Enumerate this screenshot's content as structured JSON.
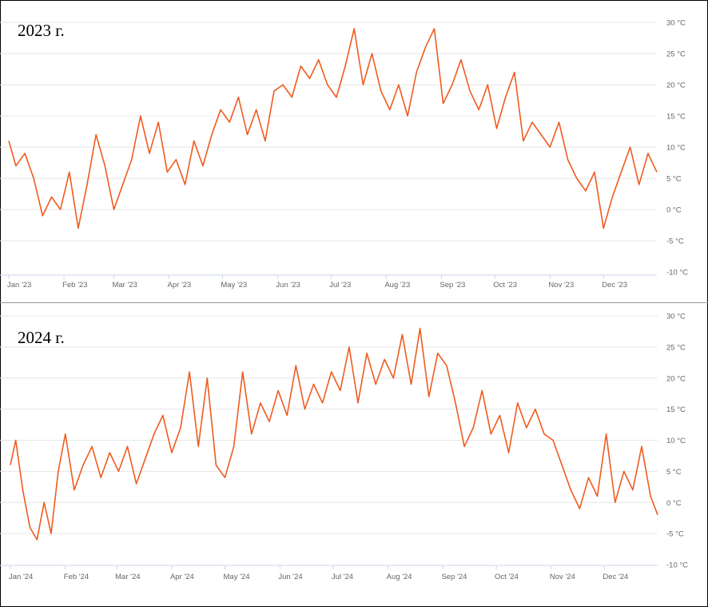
{
  "colors": {
    "series": "#ef5b1f",
    "grid": "#e6e6e6",
    "axis": "#ccd6eb",
    "label": "#666666"
  },
  "chart_data": [
    {
      "type": "line",
      "title": "2023 г.",
      "ylim": [
        -10,
        30
      ],
      "yticks": [
        30,
        25,
        20,
        15,
        10,
        5,
        0,
        -5,
        -10
      ],
      "ytick_labels": [
        "30 °C",
        "25 °C",
        "20 °C",
        "15 °C",
        "10 °C",
        "5 °C",
        "0 °C",
        "-5 °C",
        "-10 °C"
      ],
      "xtick_labels": [
        "Jan '23",
        "Feb '23",
        "Mar '23",
        "Apr '23",
        "May '23",
        "Jun '23",
        "Jul '23",
        "Aug '23",
        "Sep '23",
        "Oct '23",
        "Nov '23",
        "Dec '23"
      ],
      "xticks": [
        "2023-01-01",
        "2023-02-01",
        "2023-03-01",
        "2023-04-01",
        "2023-05-01",
        "2023-06-01",
        "2023-07-01",
        "2023-08-01",
        "2023-09-01",
        "2023-10-01",
        "2023-11-01",
        "2023-12-01"
      ],
      "grid": true,
      "legend": "none",
      "series": [
        {
          "points": [
            [
              "2023-01-01",
              11
            ],
            [
              "2023-01-05",
              7
            ],
            [
              "2023-01-10",
              9
            ],
            [
              "2023-01-15",
              5
            ],
            [
              "2023-01-20",
              -1
            ],
            [
              "2023-01-25",
              2
            ],
            [
              "2023-01-30",
              0
            ],
            [
              "2023-02-04",
              6
            ],
            [
              "2023-02-09",
              -3
            ],
            [
              "2023-02-14",
              4
            ],
            [
              "2023-02-19",
              12
            ],
            [
              "2023-02-24",
              7
            ],
            [
              "2023-03-01",
              0
            ],
            [
              "2023-03-06",
              4
            ],
            [
              "2023-03-11",
              8
            ],
            [
              "2023-03-16",
              15
            ],
            [
              "2023-03-21",
              9
            ],
            [
              "2023-03-26",
              14
            ],
            [
              "2023-03-31",
              6
            ],
            [
              "2023-04-05",
              8
            ],
            [
              "2023-04-10",
              4
            ],
            [
              "2023-04-15",
              11
            ],
            [
              "2023-04-20",
              7
            ],
            [
              "2023-04-25",
              12
            ],
            [
              "2023-04-30",
              16
            ],
            [
              "2023-05-05",
              14
            ],
            [
              "2023-05-10",
              18
            ],
            [
              "2023-05-15",
              12
            ],
            [
              "2023-05-20",
              16
            ],
            [
              "2023-05-25",
              11
            ],
            [
              "2023-05-30",
              19
            ],
            [
              "2023-06-04",
              20
            ],
            [
              "2023-06-09",
              18
            ],
            [
              "2023-06-14",
              23
            ],
            [
              "2023-06-19",
              21
            ],
            [
              "2023-06-24",
              24
            ],
            [
              "2023-06-29",
              20
            ],
            [
              "2023-07-04",
              18
            ],
            [
              "2023-07-09",
              23
            ],
            [
              "2023-07-14",
              29
            ],
            [
              "2023-07-19",
              20
            ],
            [
              "2023-07-24",
              25
            ],
            [
              "2023-07-29",
              19
            ],
            [
              "2023-08-03",
              16
            ],
            [
              "2023-08-08",
              20
            ],
            [
              "2023-08-13",
              15
            ],
            [
              "2023-08-18",
              22
            ],
            [
              "2023-08-23",
              26
            ],
            [
              "2023-08-28",
              29
            ],
            [
              "2023-09-02",
              17
            ],
            [
              "2023-09-07",
              20
            ],
            [
              "2023-09-12",
              24
            ],
            [
              "2023-09-17",
              19
            ],
            [
              "2023-09-22",
              16
            ],
            [
              "2023-09-27",
              20
            ],
            [
              "2023-10-02",
              13
            ],
            [
              "2023-10-07",
              18
            ],
            [
              "2023-10-12",
              22
            ],
            [
              "2023-10-17",
              11
            ],
            [
              "2023-10-22",
              14
            ],
            [
              "2023-10-27",
              12
            ],
            [
              "2023-11-01",
              10
            ],
            [
              "2023-11-06",
              14
            ],
            [
              "2023-11-11",
              8
            ],
            [
              "2023-11-16",
              5
            ],
            [
              "2023-11-21",
              3
            ],
            [
              "2023-11-26",
              6
            ],
            [
              "2023-12-01",
              -3
            ],
            [
              "2023-12-06",
              2
            ],
            [
              "2023-12-11",
              6
            ],
            [
              "2023-12-16",
              10
            ],
            [
              "2023-12-21",
              4
            ],
            [
              "2023-12-26",
              9
            ],
            [
              "2023-12-31",
              6
            ]
          ]
        }
      ]
    },
    {
      "type": "line",
      "title": "2024 г.",
      "ylim": [
        -10,
        30
      ],
      "yticks": [
        30,
        25,
        20,
        15,
        10,
        5,
        0,
        -5,
        -10
      ],
      "ytick_labels": [
        "30 °C",
        "25 °C",
        "20 °C",
        "15 °C",
        "10 °C",
        "5 °C",
        "0 °C",
        "-5 °C",
        "-10 °C"
      ],
      "xtick_labels": [
        "Jan '24",
        "Feb '24",
        "Mar '24",
        "Apr '24",
        "May '24",
        "Jun '24",
        "Jul '24",
        "Aug '24",
        "Sep '24",
        "Oct '24",
        "Nov '24",
        "Dec '24"
      ],
      "xticks": [
        "2024-01-01",
        "2024-02-01",
        "2024-03-01",
        "2024-04-01",
        "2024-05-01",
        "2024-06-01",
        "2024-07-01",
        "2024-08-01",
        "2024-09-01",
        "2024-10-01",
        "2024-11-01",
        "2024-12-01"
      ],
      "grid": true,
      "legend": "none",
      "series": [
        {
          "points": [
            [
              "2024-01-01",
              6
            ],
            [
              "2024-01-04",
              10
            ],
            [
              "2024-01-08",
              2
            ],
            [
              "2024-01-12",
              -4
            ],
            [
              "2024-01-16",
              -6
            ],
            [
              "2024-01-20",
              0
            ],
            [
              "2024-01-24",
              -5
            ],
            [
              "2024-01-28",
              5
            ],
            [
              "2024-02-01",
              11
            ],
            [
              "2024-02-06",
              2
            ],
            [
              "2024-02-11",
              6
            ],
            [
              "2024-02-16",
              9
            ],
            [
              "2024-02-21",
              4
            ],
            [
              "2024-02-26",
              8
            ],
            [
              "2024-03-02",
              5
            ],
            [
              "2024-03-07",
              9
            ],
            [
              "2024-03-12",
              3
            ],
            [
              "2024-03-17",
              7
            ],
            [
              "2024-03-22",
              11
            ],
            [
              "2024-03-27",
              14
            ],
            [
              "2024-04-01",
              8
            ],
            [
              "2024-04-06",
              12
            ],
            [
              "2024-04-11",
              21
            ],
            [
              "2024-04-16",
              9
            ],
            [
              "2024-04-21",
              20
            ],
            [
              "2024-04-26",
              6
            ],
            [
              "2024-05-01",
              4
            ],
            [
              "2024-05-06",
              9
            ],
            [
              "2024-05-11",
              21
            ],
            [
              "2024-05-16",
              11
            ],
            [
              "2024-05-21",
              16
            ],
            [
              "2024-05-26",
              13
            ],
            [
              "2024-05-31",
              18
            ],
            [
              "2024-06-05",
              14
            ],
            [
              "2024-06-10",
              22
            ],
            [
              "2024-06-15",
              15
            ],
            [
              "2024-06-20",
              19
            ],
            [
              "2024-06-25",
              16
            ],
            [
              "2024-06-30",
              21
            ],
            [
              "2024-07-05",
              18
            ],
            [
              "2024-07-10",
              25
            ],
            [
              "2024-07-15",
              16
            ],
            [
              "2024-07-20",
              24
            ],
            [
              "2024-07-25",
              19
            ],
            [
              "2024-07-30",
              23
            ],
            [
              "2024-08-04",
              20
            ],
            [
              "2024-08-09",
              27
            ],
            [
              "2024-08-14",
              19
            ],
            [
              "2024-08-19",
              28
            ],
            [
              "2024-08-24",
              17
            ],
            [
              "2024-08-29",
              24
            ],
            [
              "2024-09-03",
              22
            ],
            [
              "2024-09-08",
              16
            ],
            [
              "2024-09-13",
              9
            ],
            [
              "2024-09-18",
              12
            ],
            [
              "2024-09-23",
              18
            ],
            [
              "2024-09-28",
              11
            ],
            [
              "2024-10-03",
              14
            ],
            [
              "2024-10-08",
              8
            ],
            [
              "2024-10-13",
              16
            ],
            [
              "2024-10-18",
              12
            ],
            [
              "2024-10-23",
              15
            ],
            [
              "2024-10-28",
              11
            ],
            [
              "2024-11-02",
              10
            ],
            [
              "2024-11-07",
              6
            ],
            [
              "2024-11-12",
              2
            ],
            [
              "2024-11-17",
              -1
            ],
            [
              "2024-11-22",
              4
            ],
            [
              "2024-11-27",
              1
            ],
            [
              "2024-12-02",
              11
            ],
            [
              "2024-12-07",
              0
            ],
            [
              "2024-12-12",
              5
            ],
            [
              "2024-12-17",
              2
            ],
            [
              "2024-12-22",
              9
            ],
            [
              "2024-12-27",
              1
            ],
            [
              "2024-12-31",
              -2
            ]
          ]
        }
      ]
    }
  ]
}
